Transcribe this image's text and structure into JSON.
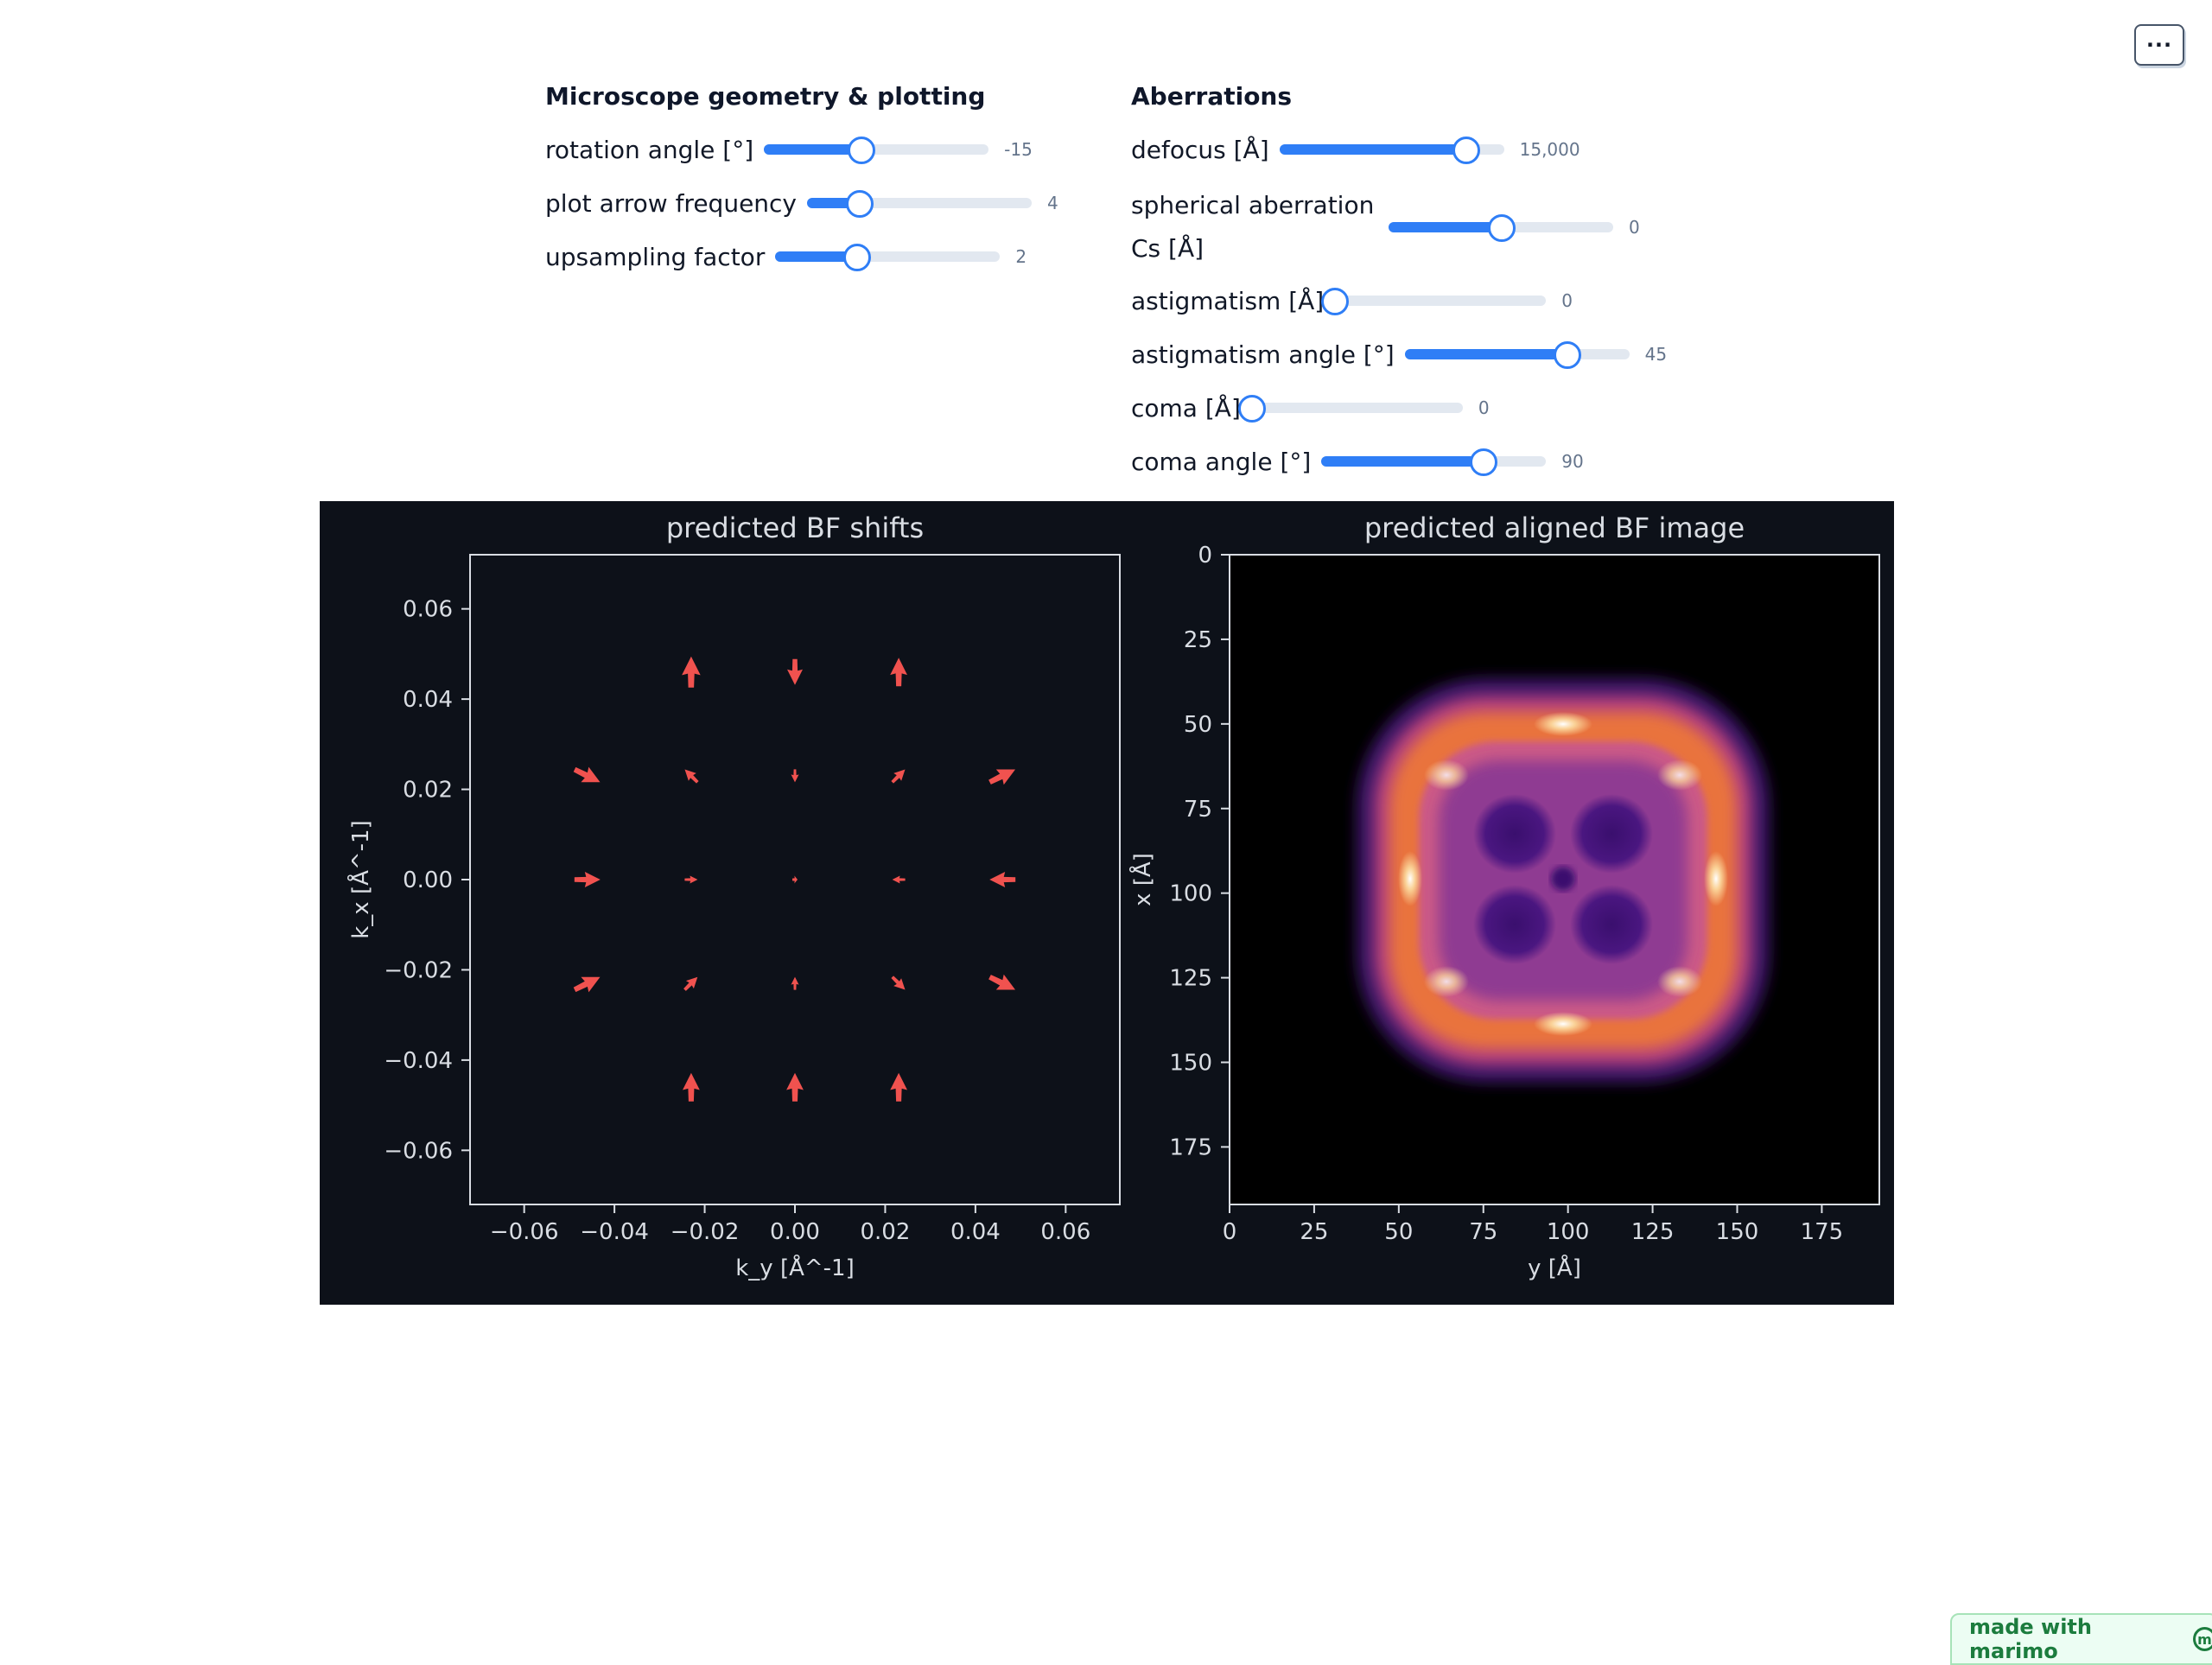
{
  "menu": {
    "label": "···"
  },
  "geometry": {
    "title": "Microscope geometry & plotting",
    "sliders": [
      {
        "label": "rotation angle [°]",
        "value": "-15",
        "fraction": 0.43
      },
      {
        "label": "plot arrow frequency",
        "value": "4",
        "fraction": 0.23
      },
      {
        "label": "upsampling factor",
        "value": "2",
        "fraction": 0.36
      }
    ]
  },
  "aberrations": {
    "title": "Aberrations",
    "sliders": [
      {
        "label": "defocus [Å]",
        "value": "15,000",
        "fraction": 0.83
      },
      {
        "label": "spherical aberration Cs [Å]",
        "value": "0",
        "fraction": 0.5
      },
      {
        "label": "astigmatism [Å]",
        "value": "0",
        "fraction": 0.0
      },
      {
        "label": "astigmatism angle [°]",
        "value": "45",
        "fraction": 0.72
      },
      {
        "label": "coma [Å]",
        "value": "0",
        "fraction": 0.0
      },
      {
        "label": "coma angle [°]",
        "value": "90",
        "fraction": 0.72
      }
    ]
  },
  "colors": {
    "accent": "#2f7ef6",
    "figure_bg": "#0d1119",
    "arrow": "#f0524f"
  },
  "chart_data": [
    {
      "type": "scatter",
      "title": "predicted BF shifts",
      "xlabel": "k_y [Å^-1]",
      "ylabel": "k_x [Å^-1]",
      "xlim": [
        -0.072,
        0.072
      ],
      "ylim": [
        -0.072,
        0.072
      ],
      "xticks": [
        "−0.06",
        "−0.04",
        "−0.02",
        "0.00",
        "0.02",
        "0.04",
        "0.06"
      ],
      "yticks": [
        "0.06",
        "0.04",
        "0.02",
        "0.00",
        "−0.02",
        "−0.04",
        "−0.06"
      ],
      "arrows": [
        {
          "ky": -0.023,
          "kx": 0.046,
          "dy": 0.0,
          "dx": 0.003,
          "len": 1.2
        },
        {
          "ky": 0.0,
          "kx": 0.046,
          "dy": 0.0,
          "dx": -0.003,
          "len": 1.0
        },
        {
          "ky": 0.023,
          "kx": 0.046,
          "dy": 0.0,
          "dx": 0.003,
          "len": 1.1
        },
        {
          "ky": -0.046,
          "kx": 0.023,
          "dy": 0.004,
          "dx": -0.002,
          "len": 1.1
        },
        {
          "ky": -0.023,
          "kx": 0.023,
          "dy": -0.002,
          "dx": 0.002,
          "len": 0.7
        },
        {
          "ky": 0.0,
          "kx": 0.023,
          "dy": 0.0,
          "dx": -0.002,
          "len": 0.5
        },
        {
          "ky": 0.023,
          "kx": 0.023,
          "dy": 0.002,
          "dx": 0.002,
          "len": 0.7
        },
        {
          "ky": 0.046,
          "kx": 0.023,
          "dy": 0.004,
          "dx": 0.002,
          "len": 1.1
        },
        {
          "ky": -0.046,
          "kx": 0.0,
          "dy": 0.004,
          "dx": 0.0,
          "len": 1.0
        },
        {
          "ky": -0.023,
          "kx": 0.0,
          "dy": 0.002,
          "dx": 0.0,
          "len": 0.5
        },
        {
          "ky": 0.0,
          "kx": 0.0,
          "dy": 0.001,
          "dx": 0.0,
          "len": 0.2
        },
        {
          "ky": 0.023,
          "kx": 0.0,
          "dy": -0.002,
          "dx": 0.0,
          "len": 0.5
        },
        {
          "ky": 0.046,
          "kx": 0.0,
          "dy": -0.004,
          "dx": 0.0,
          "len": 1.0
        },
        {
          "ky": -0.046,
          "kx": -0.023,
          "dy": 0.004,
          "dx": 0.002,
          "len": 1.1
        },
        {
          "ky": -0.023,
          "kx": -0.023,
          "dy": 0.002,
          "dx": 0.002,
          "len": 0.7
        },
        {
          "ky": 0.0,
          "kx": -0.023,
          "dy": 0.0,
          "dx": 0.002,
          "len": 0.5
        },
        {
          "ky": 0.023,
          "kx": -0.023,
          "dy": 0.002,
          "dx": -0.002,
          "len": 0.7
        },
        {
          "ky": 0.046,
          "kx": -0.023,
          "dy": 0.004,
          "dx": -0.002,
          "len": 1.1
        },
        {
          "ky": -0.023,
          "kx": -0.046,
          "dy": 0.0,
          "dx": 0.004,
          "len": 1.1
        },
        {
          "ky": 0.0,
          "kx": -0.046,
          "dy": 0.0,
          "dx": 0.004,
          "len": 1.1
        },
        {
          "ky": 0.023,
          "kx": -0.046,
          "dy": 0.0,
          "dx": 0.004,
          "len": 1.1
        }
      ]
    },
    {
      "type": "heatmap",
      "title": "predicted aligned BF image",
      "xlabel": "y [Å]",
      "ylabel": "x [Å]",
      "xlim": [
        0,
        192
      ],
      "ylim": [
        192,
        0
      ],
      "xticks": [
        "0",
        "25",
        "50",
        "75",
        "100",
        "125",
        "150",
        "175"
      ],
      "yticks": [
        "0",
        "25",
        "50",
        "75",
        "100",
        "125",
        "150",
        "175"
      ],
      "colormap": "magma"
    }
  ],
  "footer": {
    "label": "made with marimo",
    "logo": "m"
  }
}
